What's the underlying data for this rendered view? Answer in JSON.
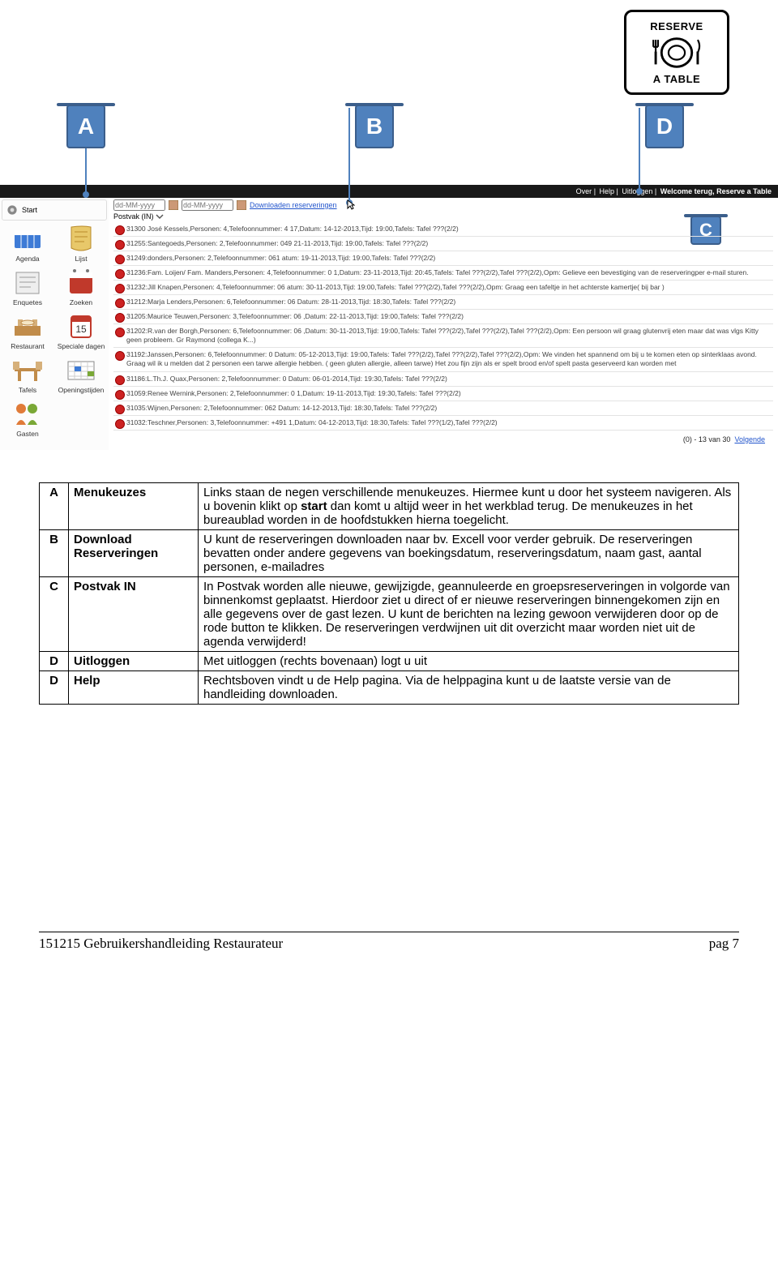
{
  "logo": {
    "top": "RESERVE",
    "bottom": "A TABLE"
  },
  "callouts": {
    "a": "A",
    "b": "B",
    "d": "D",
    "c": "C"
  },
  "topbar": {
    "over": "Over",
    "help": "Help",
    "uitloggen": "Uitloggen",
    "welcome": "Welcome terug, Reserve a Table"
  },
  "sidebar": {
    "start": "Start",
    "items": [
      {
        "label": "Agenda"
      },
      {
        "label": "Lijst"
      },
      {
        "label": "Enquetes"
      },
      {
        "label": "Zoeken"
      },
      {
        "label": "Restaurant"
      },
      {
        "label": "Speciale dagen"
      },
      {
        "label": "Tafels"
      },
      {
        "label": "Openingstijden"
      },
      {
        "label": "Gasten"
      },
      {
        "label": ""
      }
    ]
  },
  "filter": {
    "ph1": "dd-MM-yyyy",
    "ph2": "dd-MM-yyyy",
    "download": "Downloaden reserveringen",
    "postvak": "Postvak (IN)"
  },
  "reservations": [
    "31300 José Kessels,Personen: 4,Telefoonnummer: 4           17,Datum: 14-12-2013,Tijd: 19:00,Tafels: Tafel ???(2/2)",
    "31255:Santegoeds,Personen: 2,Telefoonnummer: 049            21-11-2013,Tijd: 19:00,Tafels: Tafel ???(2/2)",
    "31249:donders,Personen: 2,Telefoonnummer: 061               atum: 19-11-2013,Tijd: 19:00,Tafels: Tafel ???(2/2)",
    "31236:Fam. Loijen/ Fam. Manders,Personen: 4,Telefoonnummer: 0       1,Datum: 23-11-2013,Tijd: 20:45,Tafels: Tafel ???(2/2),Tafel ???(2/2),Opm: Gelieve een bevestiging van de reserveringper e-mail sturen.",
    "31232:Jill Knapen,Personen: 4,Telefoonnummer: 06            atum: 30-11-2013,Tijd: 19:00,Tafels: Tafel ???(2/2),Tafel ???(2/2),Opm: Graag een tafeltje in het achterste kamertje( bij bar )",
    "31212:Marja Lenders,Personen: 6,Telefoonnummer: 06          Datum: 28-11-2013,Tijd: 18:30,Tafels: Tafel ???(2/2)",
    "31205:Maurice Teuwen,Personen: 3,Telefoonnummer: 06        ,Datum: 22-11-2013,Tijd: 19:00,Tafels: Tafel ???(2/2)",
    "31202:R.van der Borgh,Personen: 6,Telefoonnummer: 06       ,Datum: 30-11-2013,Tijd: 19:00,Tafels: Tafel ???(2/2),Tafel ???(2/2),Tafel ???(2/2),Opm: Een persoon wil graag glutenvrij eten maar dat was vlgs Kitty geen probleem. Gr Raymond (collega K...)",
    "31192:Janssen,Personen: 6,Telefoonnummer: 0                 Datum: 05-12-2013,Tijd: 19:00,Tafels: Tafel ???(2/2),Tafel ???(2/2),Tafel ???(2/2),Opm: We vinden het spannend om bij u te komen eten op sinterklaas avond. Graag wil ik u melden dat 2 personen een tarwe allergie hebben. ( geen gluten allergie, alleen tarwe) Het zou fijn zijn als er spelt brood en/of spelt pasta geserveerd kan worden met",
    "31186:L.Th.J. Quax,Personen: 2,Telefoonnummer: 0            Datum: 06-01-2014,Tijd: 19:30,Tafels: Tafel ???(2/2)",
    "31059:Renee Wernink,Personen: 2,Telefoonnummer: 0           1,Datum: 19-11-2013,Tijd: 19:30,Tafels: Tafel ???(2/2)",
    "31035:Wijnen,Personen: 2,Telefoonnummer: 062                Datum: 14-12-2013,Tijd: 18:30,Tafels: Tafel ???(2/2)",
    "31032:Teschner,Personen: 3,Telefoonnummer: +491             1,Datum: 04-12-2013,Tijd: 18:30,Tafels: Tafel ???(1/2),Tafel ???(2/2)"
  ],
  "pager": {
    "range": "(0) - 13 van 30",
    "next": "Volgende"
  },
  "table": {
    "rows": [
      {
        "k": "A",
        "l": "Menukeuzes",
        "d": "Links staan de negen verschillende menukeuzes. Hiermee kunt u door het systeem navigeren. Als u bovenin klikt op <b>start</b> dan komt u altijd weer in het werkblad terug. De menukeuzes in het bureaublad worden in de hoofdstukken hierna toegelicht."
      },
      {
        "k": "B",
        "l": "Download Reserveringen",
        "d": "U kunt de  reserveringen downloaden naar bv. Excell voor verder gebruik. De reserveringen bevatten onder andere gegevens van boekingsdatum, reserveringsdatum, naam gast, aantal personen, e-mailadres"
      },
      {
        "k": "C",
        "l": "Postvak IN",
        "d": "In Postvak worden alle nieuwe, gewijzigde, geannuleerde en groepsreserveringen in volgorde van binnenkomst geplaatst. Hierdoor ziet u direct of er nieuwe reserveringen binnengekomen zijn en alle gegevens over de gast lezen. U kunt de berichten na lezing gewoon verwijderen door op de rode button te klikken.  De reserveringen verdwijnen uit dit overzicht maar worden niet uit de agenda verwijderd!"
      },
      {
        "k": "D",
        "l": "Uitloggen",
        "d": "Met uitloggen (rechts bovenaan) logt u uit"
      },
      {
        "k": "D",
        "l": "Help",
        "d": "Rechtsboven vindt u de Help pagina. Via de helppagina kunt u de laatste versie van de handleiding downloaden."
      }
    ]
  },
  "footer": {
    "left": "151215 Gebruikershandleiding Restaurateur",
    "right": "pag 7"
  },
  "icons": {
    "colors": {
      "agenda": "#3e7bd6",
      "lijst": "#d9a23a",
      "enquetes": "#b7b7b7",
      "zoeken": "#c0392b",
      "restaurant": "#c18c4a",
      "speciale": "#c0392b",
      "tafels": "#c18c4a",
      "openings": "#3e7bd6",
      "gasten": "#7aa836"
    }
  }
}
